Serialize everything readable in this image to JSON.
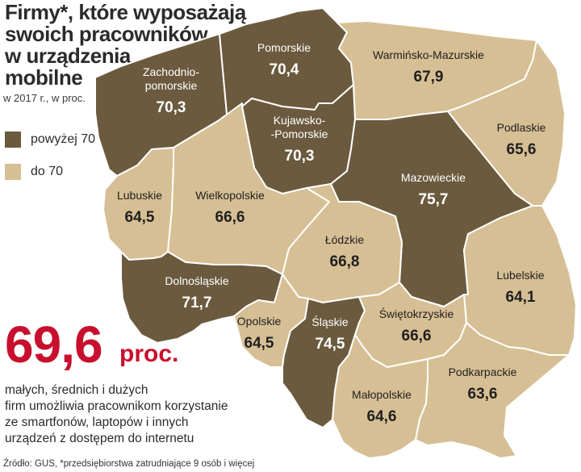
{
  "title": "Firmy*, które wyposażają swoich pracowników w urządzenia mobilne",
  "title_lines": [
    "Firmy*, które wyposażają",
    "swoich pracowników",
    "w urządzenia",
    "mobilne"
  ],
  "subtitle": "w 2017 r., w proc.",
  "legend": [
    {
      "label": "powyżej 70",
      "color": "#6b5a3e"
    },
    {
      "label": "do 70",
      "color": "#d6bf94"
    }
  ],
  "colors": {
    "dark": "#6b5a3e",
    "light": "#d6bf94",
    "border": "#ffffff",
    "accent": "#c8102e",
    "text_dark": "#ffffff",
    "text_light": "#1f1f1f"
  },
  "headline": {
    "value": "69,6",
    "unit": "proc."
  },
  "description_lines": [
    "małych, średnich i dużych",
    "firm umożliwia pracownikom korzystanie",
    "ze smartfonów, laptopów i innych",
    "urządzeń z dostępem do internetu"
  ],
  "source": "Źródło: GUS, *przedsiębiorstwa zatrudniające 9 osób i więcej",
  "regions": [
    {
      "id": "zachodniopomorskie",
      "name_lines": [
        "Zachodnio-",
        "pomorskie"
      ],
      "value": "70,3",
      "category": "dark"
    },
    {
      "id": "pomorskie",
      "name_lines": [
        "Pomorskie"
      ],
      "value": "70,4",
      "category": "dark"
    },
    {
      "id": "warminsko-mazurskie",
      "name_lines": [
        "Warmińsko-Mazurskie"
      ],
      "value": "67,9",
      "category": "light"
    },
    {
      "id": "podlaskie",
      "name_lines": [
        "Podlaskie"
      ],
      "value": "65,6",
      "category": "light"
    },
    {
      "id": "kujawsko-pomorskie",
      "name_lines": [
        "Kujawsko-",
        "-Pomorskie"
      ],
      "value": "70,3",
      "category": "dark"
    },
    {
      "id": "mazowieckie",
      "name_lines": [
        "Mazowieckie"
      ],
      "value": "75,7",
      "category": "dark"
    },
    {
      "id": "lubuskie",
      "name_lines": [
        "Lubuskie"
      ],
      "value": "64,5",
      "category": "light"
    },
    {
      "id": "wielkopolskie",
      "name_lines": [
        "Wielkopolskie"
      ],
      "value": "66,6",
      "category": "light"
    },
    {
      "id": "lodzkie",
      "name_lines": [
        "Łódzkie"
      ],
      "value": "66,8",
      "category": "light"
    },
    {
      "id": "lubelskie",
      "name_lines": [
        "Lubelskie"
      ],
      "value": "64,1",
      "category": "light"
    },
    {
      "id": "dolnoslaskie",
      "name_lines": [
        "Dolnośląskie"
      ],
      "value": "71,7",
      "category": "dark"
    },
    {
      "id": "opolskie",
      "name_lines": [
        "Opolskie"
      ],
      "value": "64,5",
      "category": "light"
    },
    {
      "id": "slaskie",
      "name_lines": [
        "Śląskie"
      ],
      "value": "74,5",
      "category": "dark"
    },
    {
      "id": "swietokrzyskie",
      "name_lines": [
        "Świętokrzyskie"
      ],
      "value": "66,6",
      "category": "light"
    },
    {
      "id": "malopolskie",
      "name_lines": [
        "Małopolskie"
      ],
      "value": "64,6",
      "category": "light"
    },
    {
      "id": "podkarpackie",
      "name_lines": [
        "Podkarpackie"
      ],
      "value": "63,6",
      "category": "light"
    }
  ]
}
